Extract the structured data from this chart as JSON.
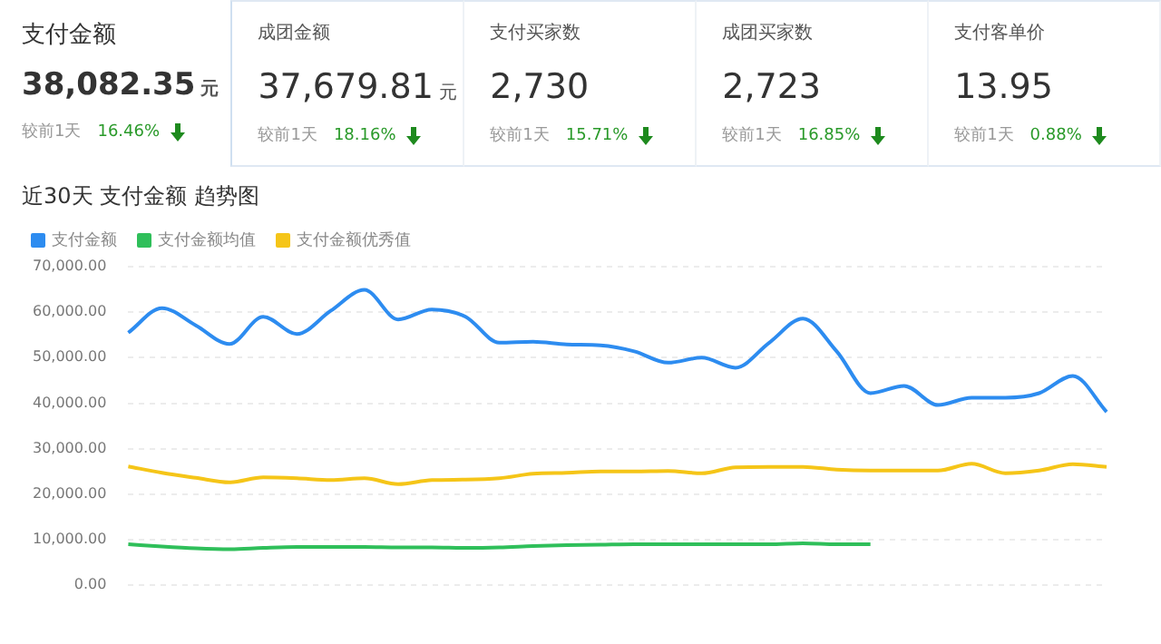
{
  "chart_data": [
    {
      "type": "other",
      "title": "支付金额",
      "subtitle": "38,082.35",
      "annotations": [
        "元",
        "较前1天",
        "16.46%"
      ]
    },
    {
      "type": "other",
      "title": "成团金额",
      "subtitle": "37,679.81",
      "annotations": [
        "元",
        "较前1天",
        "18.16%"
      ]
    },
    {
      "type": "other",
      "title": "支付买家数",
      "subtitle": "2,730",
      "annotations": [
        "较前1天",
        "15.71%"
      ]
    },
    {
      "type": "other",
      "title": "成团买家数",
      "subtitle": "2,723",
      "annotations": [
        "较前1天",
        "16.85%"
      ]
    },
    {
      "type": "other",
      "title": "支付客单价",
      "subtitle": "13.95",
      "annotations": [
        "较前1天",
        "0.88%"
      ]
    },
    {
      "type": "line",
      "title": "近30天 支付金额 趋势图",
      "legend": "top left",
      "grid": "y",
      "categories": [
        null,
        null,
        null,
        null,
        null,
        null,
        null,
        null,
        null,
        null,
        null,
        null,
        null,
        null,
        null,
        null,
        null,
        null,
        null,
        null,
        null,
        null,
        null,
        null,
        null,
        null,
        null,
        null,
        null,
        null
      ],
      "ylim": [
        0,
        70000
      ],
      "yticks": [
        {
          "value": 0,
          "label": "0.00"
        },
        {
          "value": 10000,
          "label": "10,000.00"
        },
        {
          "value": 20000,
          "label": "20,000.00"
        },
        {
          "value": 30000,
          "label": "30,000.00"
        },
        {
          "value": 40000,
          "label": "40,000.00"
        },
        {
          "value": 50000,
          "label": "50,000.00"
        },
        {
          "value": 60000,
          "label": "60,000.00"
        },
        {
          "value": 70000,
          "label": "70,000.00"
        }
      ],
      "series": [
        {
          "name": "支付金额",
          "color": "#2d8cf0",
          "values": [
            55500,
            60900,
            57100,
            53000,
            59000,
            55200,
            60300,
            64900,
            58400,
            60600,
            59000,
            53300,
            53500,
            52900,
            52700,
            51400,
            48900,
            50000,
            47800,
            53300,
            58600,
            51400,
            42200,
            43800,
            39600,
            41200,
            41200,
            42200,
            46000,
            38100
          ]
        },
        {
          "name": "支付金额均值",
          "color": "#2fbf5a",
          "values": [
            9000,
            8500,
            8100,
            7900,
            8200,
            8400,
            8400,
            8400,
            8300,
            8300,
            8200,
            8300,
            8600,
            8800,
            8900,
            9000,
            9000,
            9000,
            9000,
            9000,
            9200,
            9000,
            9000,
            null,
            null,
            null,
            null,
            null,
            null,
            null
          ]
        },
        {
          "name": "支付金额优秀值",
          "color": "#f5c518",
          "values": [
            26100,
            24700,
            23600,
            22600,
            23700,
            23500,
            23100,
            23500,
            22200,
            23100,
            23200,
            23500,
            24500,
            24700,
            25000,
            25000,
            25100,
            24600,
            25900,
            26000,
            26000,
            25400,
            25200,
            25200,
            25200,
            26700,
            24600,
            25200,
            26600,
            26000
          ]
        }
      ]
    }
  ]
}
